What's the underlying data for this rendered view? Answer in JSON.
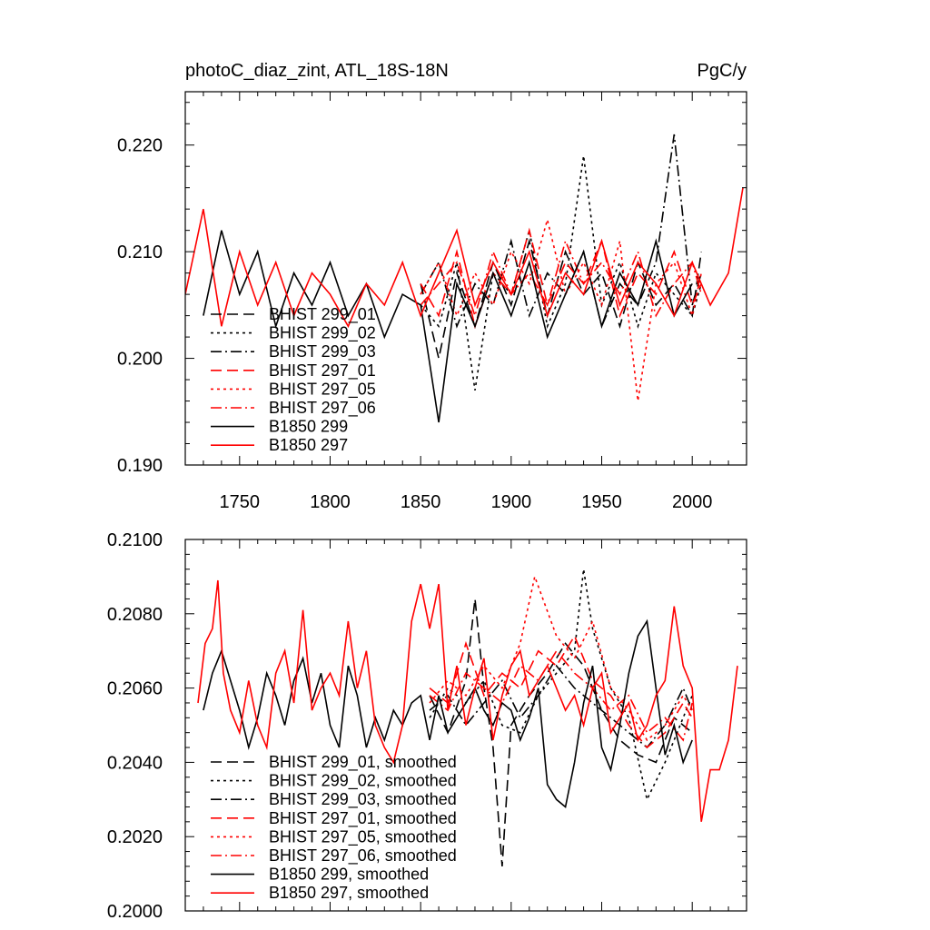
{
  "chart_data": [
    {
      "type": "line",
      "title_left": "photoC_diaz_zint, ATL_18S-18N",
      "title_right": "PgC/y",
      "xlabel": "",
      "ylabel": "",
      "xlim": [
        1720,
        2030
      ],
      "ylim": [
        0.19,
        0.225
      ],
      "x_ticks": [
        1750,
        1800,
        1850,
        1900,
        1950,
        2000
      ],
      "x_tick_labels": [
        "1750",
        "1800",
        "1850",
        "1900",
        "1950",
        "2000"
      ],
      "y_ticks": [
        0.19,
        0.2,
        0.21,
        0.22
      ],
      "y_tick_labels": [
        "0.190",
        "0.200",
        "0.210",
        "0.220"
      ],
      "legend_position": "lower-left",
      "series": [
        {
          "name": "BHIST 299_01",
          "color": "#000000",
          "dash": "dashed",
          "x": [
            1850,
            1860,
            1870,
            1880,
            1890,
            1900,
            1910,
            1920,
            1930,
            1940,
            1950,
            1960,
            1970,
            1980,
            1990,
            2000,
            2005
          ],
          "values": [
            0.207,
            0.2,
            0.208,
            0.203,
            0.209,
            0.205,
            0.211,
            0.204,
            0.21,
            0.206,
            0.208,
            0.203,
            0.209,
            0.205,
            0.207,
            0.204,
            0.21
          ]
        },
        {
          "name": "BHIST 299_02",
          "color": "#000000",
          "dash": "dotted",
          "x": [
            1850,
            1860,
            1870,
            1880,
            1890,
            1900,
            1910,
            1920,
            1930,
            1940,
            1950,
            1960,
            1970,
            1980,
            1990,
            2000,
            2005
          ],
          "values": [
            0.205,
            0.203,
            0.209,
            0.197,
            0.208,
            0.206,
            0.212,
            0.203,
            0.207,
            0.219,
            0.205,
            0.209,
            0.203,
            0.208,
            0.206,
            0.204,
            0.207
          ]
        },
        {
          "name": "BHIST 299_03",
          "color": "#000000",
          "dash": "dashdot",
          "x": [
            1850,
            1860,
            1870,
            1880,
            1890,
            1900,
            1910,
            1920,
            1930,
            1940,
            1950,
            1960,
            1970,
            1980,
            1990,
            2000,
            2005
          ],
          "values": [
            0.206,
            0.209,
            0.203,
            0.207,
            0.205,
            0.211,
            0.204,
            0.208,
            0.206,
            0.21,
            0.203,
            0.207,
            0.205,
            0.209,
            0.221,
            0.205,
            0.208
          ]
        },
        {
          "name": "BHIST 297_01",
          "color": "#ff0000",
          "dash": "dashed",
          "x": [
            1850,
            1860,
            1870,
            1880,
            1890,
            1900,
            1910,
            1920,
            1930,
            1940,
            1950,
            1960,
            1970,
            1980,
            1990,
            2000,
            2005
          ],
          "values": [
            0.207,
            0.204,
            0.21,
            0.203,
            0.208,
            0.206,
            0.212,
            0.205,
            0.209,
            0.207,
            0.211,
            0.204,
            0.208,
            0.206,
            0.21,
            0.205,
            0.207
          ]
        },
        {
          "name": "BHIST 297_05",
          "color": "#ff0000",
          "dash": "dotted",
          "x": [
            1850,
            1860,
            1870,
            1880,
            1890,
            1900,
            1910,
            1920,
            1930,
            1940,
            1950,
            1960,
            1970,
            1980,
            1990,
            2000,
            2005
          ],
          "values": [
            0.206,
            0.209,
            0.204,
            0.208,
            0.205,
            0.21,
            0.207,
            0.213,
            0.206,
            0.209,
            0.205,
            0.211,
            0.196,
            0.207,
            0.209,
            0.204,
            0.208
          ]
        },
        {
          "name": "BHIST 297_06",
          "color": "#ff0000",
          "dash": "dashdot",
          "x": [
            1850,
            1860,
            1870,
            1880,
            1890,
            1900,
            1910,
            1920,
            1930,
            1940,
            1950,
            1960,
            1970,
            1980,
            1990,
            2000,
            2005
          ],
          "values": [
            0.205,
            0.207,
            0.209,
            0.204,
            0.21,
            0.206,
            0.208,
            0.205,
            0.211,
            0.207,
            0.209,
            0.206,
            0.21,
            0.204,
            0.207,
            0.209,
            0.206
          ]
        },
        {
          "name": "B1850 299",
          "color": "#000000",
          "dash": "solid",
          "x": [
            1730,
            1740,
            1750,
            1760,
            1770,
            1780,
            1790,
            1800,
            1810,
            1820,
            1830,
            1840,
            1850,
            1860,
            1870,
            1880,
            1890,
            1900,
            1910,
            1920,
            1930,
            1940,
            1950,
            1960,
            1970,
            1980,
            1990,
            2000
          ],
          "values": [
            0.204,
            0.212,
            0.206,
            0.21,
            0.203,
            0.208,
            0.205,
            0.209,
            0.204,
            0.207,
            0.202,
            0.206,
            0.205,
            0.194,
            0.207,
            0.203,
            0.208,
            0.204,
            0.209,
            0.202,
            0.206,
            0.21,
            0.203,
            0.208,
            0.205,
            0.211,
            0.204,
            0.207
          ]
        },
        {
          "name": "B1850 297",
          "color": "#ff0000",
          "dash": "solid",
          "x": [
            1720,
            1730,
            1740,
            1750,
            1760,
            1770,
            1780,
            1790,
            1800,
            1810,
            1820,
            1830,
            1840,
            1850,
            1860,
            1870,
            1880,
            1890,
            1900,
            1910,
            1920,
            1930,
            1940,
            1950,
            1960,
            1970,
            1980,
            1990,
            2000,
            2010,
            2020,
            2028
          ],
          "values": [
            0.206,
            0.214,
            0.203,
            0.21,
            0.205,
            0.209,
            0.204,
            0.208,
            0.206,
            0.203,
            0.207,
            0.205,
            0.209,
            0.204,
            0.208,
            0.212,
            0.205,
            0.209,
            0.206,
            0.21,
            0.204,
            0.208,
            0.206,
            0.211,
            0.205,
            0.209,
            0.207,
            0.204,
            0.209,
            0.205,
            0.208,
            0.216
          ]
        }
      ]
    },
    {
      "type": "line",
      "title_left": "",
      "title_right": "",
      "xlabel": "",
      "ylabel": "",
      "xlim": [
        1720,
        2030
      ],
      "ylim": [
        0.2,
        0.21
      ],
      "x_ticks": [
        1750,
        1800,
        1850,
        1900,
        1950,
        2000
      ],
      "x_tick_labels": [],
      "y_ticks": [
        0.2,
        0.202,
        0.204,
        0.206,
        0.208,
        0.21
      ],
      "y_tick_labels": [
        "0.2000",
        "0.2020",
        "0.2040",
        "0.2060",
        "0.2080",
        "0.2100"
      ],
      "legend_position": "lower-left",
      "series": [
        {
          "name": "BHIST 299_01, smoothed",
          "color": "#000000",
          "dash": "dashed",
          "x": [
            1855,
            1865,
            1875,
            1880,
            1885,
            1890,
            1895,
            1900,
            1910,
            1920,
            1930,
            1940,
            1950,
            1960,
            1970,
            1980,
            1990,
            2000
          ],
          "values": [
            0.2058,
            0.2048,
            0.2062,
            0.2084,
            0.206,
            0.2044,
            0.2012,
            0.205,
            0.2058,
            0.2064,
            0.2072,
            0.2066,
            0.2054,
            0.2046,
            0.2042,
            0.204,
            0.2052,
            0.2048
          ]
        },
        {
          "name": "BHIST 299_02, smoothed",
          "color": "#000000",
          "dash": "dotted",
          "x": [
            1855,
            1865,
            1875,
            1885,
            1895,
            1905,
            1915,
            1925,
            1935,
            1940,
            1945,
            1955,
            1965,
            1975,
            1985,
            1995,
            2000
          ],
          "values": [
            0.2052,
            0.206,
            0.2056,
            0.2062,
            0.205,
            0.2048,
            0.2058,
            0.2064,
            0.207,
            0.2092,
            0.2076,
            0.206,
            0.2052,
            0.203,
            0.204,
            0.2052,
            0.2058
          ]
        },
        {
          "name": "BHIST 299_03, smoothed",
          "color": "#000000",
          "dash": "dashdot",
          "x": [
            1855,
            1865,
            1875,
            1885,
            1895,
            1905,
            1915,
            1925,
            1935,
            1945,
            1955,
            1965,
            1975,
            1985,
            1995,
            2000
          ],
          "values": [
            0.2054,
            0.2058,
            0.205,
            0.2056,
            0.2062,
            0.2052,
            0.2058,
            0.2066,
            0.206,
            0.2056,
            0.2052,
            0.2048,
            0.2044,
            0.205,
            0.206,
            0.2054
          ]
        },
        {
          "name": "BHIST 297_01, smoothed",
          "color": "#ff0000",
          "dash": "dashed",
          "x": [
            1855,
            1865,
            1875,
            1885,
            1895,
            1905,
            1915,
            1925,
            1935,
            1945,
            1955,
            1965,
            1975,
            1985,
            1995,
            2000
          ],
          "values": [
            0.206,
            0.2056,
            0.2072,
            0.2058,
            0.2064,
            0.206,
            0.207,
            0.2066,
            0.2074,
            0.2062,
            0.2058,
            0.205,
            0.2044,
            0.2048,
            0.2056,
            0.2052
          ]
        },
        {
          "name": "BHIST 297_05, smoothed",
          "color": "#ff0000",
          "dash": "dotted",
          "x": [
            1855,
            1865,
            1875,
            1885,
            1895,
            1905,
            1913,
            1925,
            1935,
            1945,
            1955,
            1965,
            1975,
            1985,
            1995,
            2000
          ],
          "values": [
            0.2056,
            0.2062,
            0.2058,
            0.2066,
            0.206,
            0.2072,
            0.209,
            0.2074,
            0.2068,
            0.2078,
            0.206,
            0.2054,
            0.2046,
            0.205,
            0.2058,
            0.2054
          ]
        },
        {
          "name": "BHIST 297_06, smoothed",
          "color": "#ff0000",
          "dash": "dashdot",
          "x": [
            1855,
            1865,
            1875,
            1885,
            1895,
            1905,
            1915,
            1925,
            1935,
            1945,
            1955,
            1965,
            1975,
            1985,
            1995,
            2000
          ],
          "values": [
            0.2058,
            0.2054,
            0.2064,
            0.206,
            0.2056,
            0.2066,
            0.2062,
            0.207,
            0.2064,
            0.206,
            0.2054,
            0.2058,
            0.2048,
            0.2052,
            0.2046,
            0.2056
          ]
        },
        {
          "name": "B1850 299, smoothed",
          "color": "#000000",
          "dash": "solid",
          "x": [
            1730,
            1735,
            1740,
            1745,
            1750,
            1755,
            1760,
            1765,
            1770,
            1775,
            1780,
            1785,
            1790,
            1795,
            1800,
            1805,
            1810,
            1815,
            1820,
            1825,
            1830,
            1835,
            1840,
            1845,
            1850,
            1855,
            1860,
            1865,
            1870,
            1875,
            1880,
            1885,
            1890,
            1895,
            1900,
            1905,
            1910,
            1915,
            1920,
            1925,
            1930,
            1935,
            1940,
            1945,
            1950,
            1955,
            1960,
            1965,
            1970,
            1975,
            1980,
            1985,
            1990,
            1995,
            2000
          ],
          "values": [
            0.2054,
            0.2064,
            0.207,
            0.2062,
            0.2054,
            0.2044,
            0.2052,
            0.2064,
            0.2058,
            0.205,
            0.2062,
            0.2068,
            0.2056,
            0.2064,
            0.205,
            0.2044,
            0.2066,
            0.2058,
            0.2044,
            0.2052,
            0.2046,
            0.2054,
            0.205,
            0.2056,
            0.2058,
            0.2046,
            0.2058,
            0.2048,
            0.2052,
            0.2056,
            0.206,
            0.2054,
            0.205,
            0.2056,
            0.2054,
            0.2046,
            0.2052,
            0.206,
            0.2034,
            0.203,
            0.2028,
            0.204,
            0.2056,
            0.2066,
            0.2044,
            0.2038,
            0.205,
            0.2064,
            0.2074,
            0.2078,
            0.206,
            0.2042,
            0.205,
            0.204,
            0.2046
          ]
        },
        {
          "name": "B1850 297, smoothed",
          "color": "#ff0000",
          "dash": "solid",
          "x": [
            1727,
            1731,
            1735,
            1738,
            1741,
            1745,
            1750,
            1755,
            1760,
            1765,
            1770,
            1775,
            1780,
            1785,
            1790,
            1795,
            1800,
            1805,
            1810,
            1815,
            1820,
            1825,
            1830,
            1835,
            1840,
            1845,
            1850,
            1855,
            1860,
            1865,
            1870,
            1875,
            1880,
            1885,
            1890,
            1895,
            1900,
            1905,
            1910,
            1915,
            1920,
            1925,
            1930,
            1935,
            1940,
            1945,
            1950,
            1955,
            1960,
            1965,
            1970,
            1975,
            1980,
            1985,
            1990,
            1995,
            2000,
            2005,
            2010,
            2015,
            2020,
            2025
          ],
          "values": [
            0.2056,
            0.2072,
            0.2076,
            0.2089,
            0.2064,
            0.2054,
            0.2048,
            0.2062,
            0.205,
            0.2044,
            0.2064,
            0.207,
            0.2056,
            0.2081,
            0.2054,
            0.206,
            0.2064,
            0.2058,
            0.2078,
            0.206,
            0.207,
            0.205,
            0.2044,
            0.204,
            0.205,
            0.2078,
            0.2088,
            0.2076,
            0.2088,
            0.2054,
            0.2066,
            0.205,
            0.206,
            0.2068,
            0.2046,
            0.2058,
            0.2066,
            0.207,
            0.2058,
            0.2062,
            0.2066,
            0.206,
            0.2054,
            0.2058,
            0.205,
            0.206,
            0.2064,
            0.2048,
            0.2052,
            0.2056,
            0.2046,
            0.205,
            0.2058,
            0.2062,
            0.2082,
            0.2066,
            0.206,
            0.2024,
            0.2038,
            0.2038,
            0.2046,
            0.2066
          ]
        }
      ]
    }
  ]
}
